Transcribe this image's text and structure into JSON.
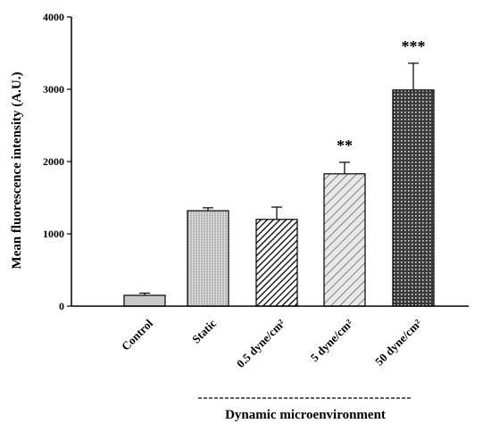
{
  "chart_data": {
    "type": "bar",
    "categories": [
      "Control",
      "Static",
      "0.5 dyne/cm²",
      "5 dyne/cm²",
      "50 dyne/cm²"
    ],
    "values": [
      150,
      1320,
      1200,
      1830,
      2990
    ],
    "errors": [
      30,
      40,
      170,
      160,
      370
    ],
    "significance": [
      "",
      "",
      "",
      "**",
      "***"
    ],
    "patterns": [
      "solid-gray",
      "fine-vertical",
      "diagonal-dense",
      "diagonal-sparse",
      "crosshatch-dark"
    ],
    "ylabel": "Mean fluorescence intensity (A.U.)",
    "xlabel": "",
    "ylim": [
      0,
      4000
    ],
    "yticks": [
      "0",
      "1000",
      "2000",
      "3000",
      "4000"
    ],
    "group_label": "Dynamic microenvironment",
    "grid": false,
    "legend": "none"
  },
  "colors": {
    "bar_fill": "#c8c8c8",
    "dark_fill": "#4a4a4a",
    "axis": "#000000"
  }
}
